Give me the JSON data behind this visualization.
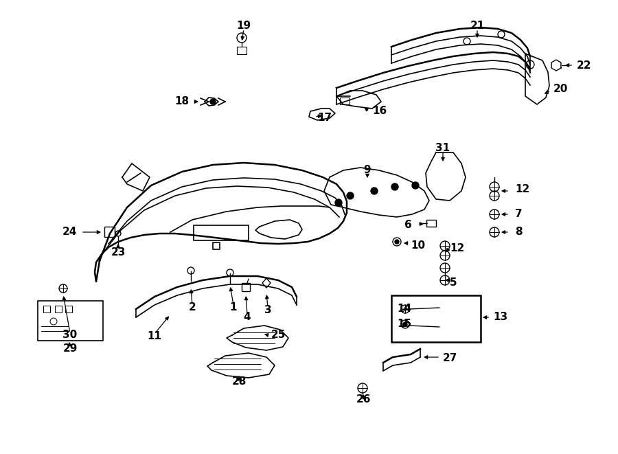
{
  "bg_color": "#ffffff",
  "line_color": "#000000",
  "fig_width": 9.0,
  "fig_height": 6.61,
  "dpi": 100,
  "font_size": 11,
  "font_weight": "bold"
}
